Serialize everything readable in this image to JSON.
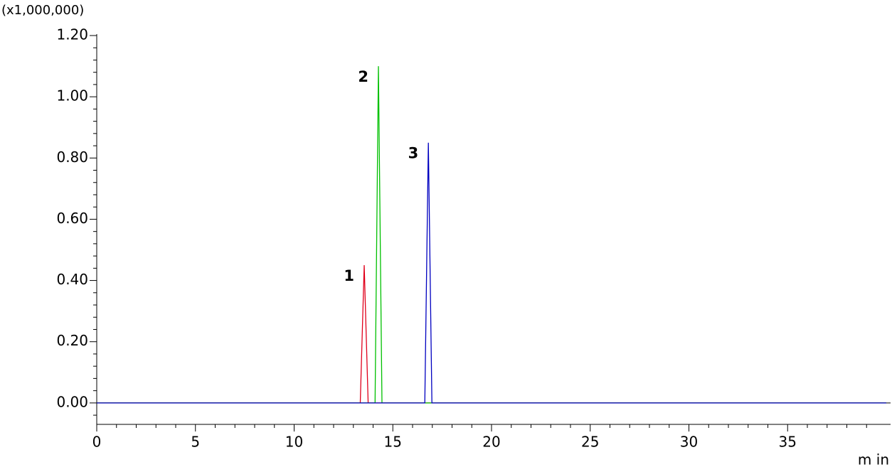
{
  "chart_data": {
    "type": "line",
    "y_label": "(x1,000,000)",
    "x_label": "m in",
    "xlim": [
      0,
      40
    ],
    "ylim": [
      -0.07,
      1.2
    ],
    "xticks": [
      0,
      5,
      10,
      15,
      20,
      25,
      30,
      35
    ],
    "x_minor_ticks": [
      1,
      2,
      3,
      4,
      6,
      7,
      8,
      9,
      11,
      12,
      13,
      14,
      16,
      17,
      18,
      19,
      21,
      22,
      23,
      24,
      26,
      27,
      28,
      29,
      31,
      32,
      33,
      34,
      36,
      37,
      38,
      39
    ],
    "yticks": [
      {
        "value": 0,
        "label": "0.00"
      },
      {
        "value": 0.2,
        "label": "0.20"
      },
      {
        "value": 0.4,
        "label": "0.40"
      },
      {
        "value": 0.6,
        "label": "0.60"
      },
      {
        "value": 0.8,
        "label": "0.80"
      },
      {
        "value": 1.0,
        "label": "1.00"
      },
      {
        "value": 1.2,
        "label": "1.20"
      }
    ],
    "y_minor_ticks": [
      -0.04,
      0.04,
      0.08,
      0.12,
      0.16,
      0.24,
      0.28,
      0.32,
      0.36,
      0.44,
      0.48,
      0.52,
      0.56,
      0.64,
      0.68,
      0.72,
      0.76,
      0.84,
      0.88,
      0.92,
      0.96,
      1.04,
      1.08,
      1.12,
      1.16
    ],
    "series": [
      {
        "name": "1",
        "color": "#e0001b",
        "x": [
          0,
          13.35,
          13.55,
          13.75,
          40
        ],
        "values": [
          0,
          0,
          0.45,
          0,
          0
        ]
      },
      {
        "name": "2",
        "color": "#00c000",
        "x": [
          0,
          14.1,
          14.27,
          14.45,
          40
        ],
        "values": [
          0,
          0,
          1.1,
          0,
          0
        ]
      },
      {
        "name": "3",
        "color": "#0000c0",
        "x": [
          0,
          16.62,
          16.8,
          16.98,
          40
        ],
        "values": [
          0,
          0,
          0.85,
          0,
          0
        ]
      }
    ]
  }
}
